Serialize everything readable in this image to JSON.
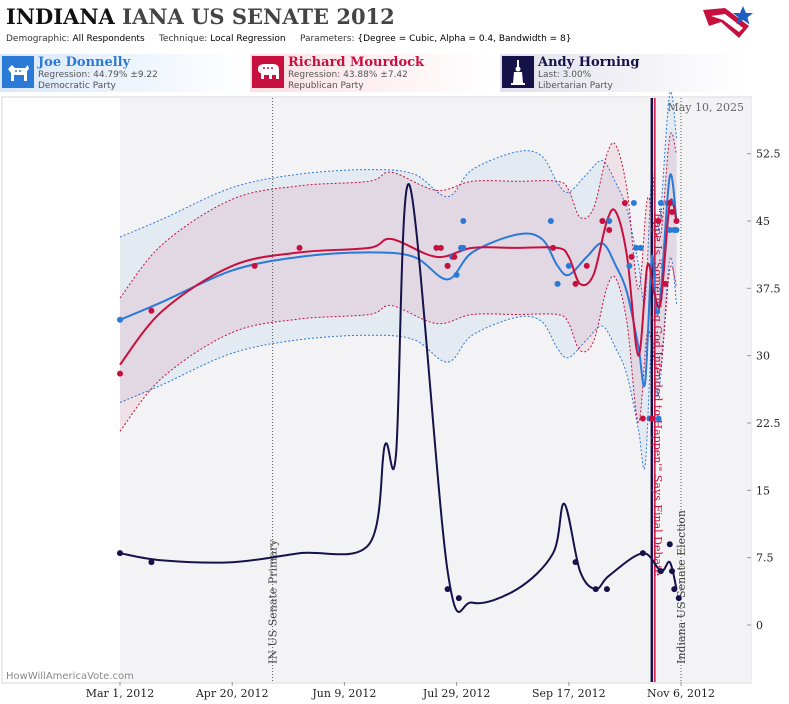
{
  "header": {
    "title_state": "INDIANA",
    "title_rest": "IANA US SENATE",
    "title_year": "2012",
    "demographic_label": "Demographic:",
    "demographic_value": "All Respondents",
    "technique_label": "Technique:",
    "technique_value": "Local Regression",
    "parameters_label": "Parameters:",
    "parameters_value": "{Degree = Cubic, Alpha = 0.4, Bandwidth = 8}"
  },
  "candidates": [
    {
      "name": "Joe Donnelly",
      "stat": "Regression: 44.79% ±9.22",
      "party": "Democratic Party",
      "color": "#2a7ad6",
      "icon": "donkey-icon"
    },
    {
      "name": "Richard Mourdock",
      "stat": "Regression: 43.88% ±7.42",
      "party": "Republican Party",
      "color": "#c8103e",
      "icon": "elephant-icon"
    },
    {
      "name": "Andy Horning",
      "stat": "Last: 3.00%",
      "party": "Libertarian Party",
      "color": "#15124a",
      "icon": "liberty-icon"
    }
  ],
  "chart_data": {
    "type": "line",
    "date_label": "May 10, 2025",
    "watermark": "HowWillAmericaVote.com",
    "xlim": [
      "2012-02-01",
      "2012-11-15"
    ],
    "ylim": [
      -7,
      60
    ],
    "x_ticks": [
      {
        "label": "Mar 1, 2012",
        "date": "2012-03-01"
      },
      {
        "label": "Apr 20, 2012",
        "date": "2012-04-20"
      },
      {
        "label": "Jun 9, 2012",
        "date": "2012-06-09"
      },
      {
        "label": "Jul 29, 2012",
        "date": "2012-07-29"
      },
      {
        "label": "Sep 17, 2012",
        "date": "2012-09-17"
      },
      {
        "label": "Nov 6, 2012",
        "date": "2012-11-06"
      }
    ],
    "y_ticks": [
      {
        "label": "52.5",
        "value": 52.5
      },
      {
        "label": "45",
        "value": 45
      },
      {
        "label": "37.5",
        "value": 37.5
      },
      {
        "label": "30",
        "value": 30
      },
      {
        "label": "22.5",
        "value": 22.5
      },
      {
        "label": "15",
        "value": 15
      },
      {
        "label": "7.5",
        "value": 7.5
      },
      {
        "label": "0",
        "value": 0
      }
    ],
    "shaded_start": "2012-03-01",
    "events": [
      {
        "date": "2012-05-08",
        "label": "IN US Senate Primary",
        "color": "#555555",
        "style": "dotted"
      },
      {
        "date": "2012-11-06",
        "label": "Indiana US Senate Election",
        "color": "#555555",
        "style": "dotted"
      }
    ],
    "annotations": [
      {
        "date": "2012-10-24",
        "label": "\"Rape Is 'Something God Intended to Happen'\" Says Final Debate",
        "color": "#c8103e"
      }
    ],
    "series": [
      {
        "name": "Joe Donnelly",
        "color": "#2a7ad6",
        "points": [
          [
            "2012-03-01",
            34
          ],
          [
            "2012-08-01",
            45
          ],
          [
            "2012-07-25",
            40
          ],
          [
            "2012-07-27",
            41
          ],
          [
            "2012-07-29",
            39
          ],
          [
            "2012-07-31",
            42
          ],
          [
            "2012-08-01",
            42
          ],
          [
            "2012-09-09",
            45
          ],
          [
            "2012-09-12",
            38
          ],
          [
            "2012-09-17",
            40
          ],
          [
            "2012-10-02",
            45
          ],
          [
            "2012-10-05",
            45
          ],
          [
            "2012-10-14",
            40
          ],
          [
            "2012-10-16",
            47
          ],
          [
            "2012-10-17",
            42
          ],
          [
            "2012-10-19",
            42
          ],
          [
            "2012-10-23",
            23
          ],
          [
            "2012-10-27",
            23
          ],
          [
            "2012-10-28",
            47
          ],
          [
            "2012-10-31",
            47
          ],
          [
            "2012-11-01",
            44
          ],
          [
            "2012-11-02",
            47
          ],
          [
            "2012-11-03",
            44
          ],
          [
            "2012-11-04",
            44
          ]
        ],
        "trend": [
          [
            "2012-03-01",
            34
          ],
          [
            "2012-03-20",
            36
          ],
          [
            "2012-04-20",
            39.5
          ],
          [
            "2012-05-20",
            41
          ],
          [
            "2012-06-20",
            41.5
          ],
          [
            "2012-07-10",
            41
          ],
          [
            "2012-07-25",
            38.5
          ],
          [
            "2012-08-05",
            41.5
          ],
          [
            "2012-08-25",
            43.5
          ],
          [
            "2012-09-05",
            43
          ],
          [
            "2012-09-12",
            40
          ],
          [
            "2012-09-17",
            39
          ],
          [
            "2012-09-25",
            41
          ],
          [
            "2012-10-02",
            42.5
          ],
          [
            "2012-10-08",
            40
          ],
          [
            "2012-10-13",
            37
          ],
          [
            "2012-10-18",
            31
          ],
          [
            "2012-10-21",
            27
          ],
          [
            "2012-10-24",
            41
          ],
          [
            "2012-10-26",
            35
          ],
          [
            "2012-10-28",
            37
          ],
          [
            "2012-11-01",
            50
          ],
          [
            "2012-11-04",
            45
          ]
        ]
      },
      {
        "name": "Richard Mourdock",
        "color": "#c8103e",
        "points": [
          [
            "2012-03-01",
            28
          ],
          [
            "2012-03-15",
            35
          ],
          [
            "2012-04-30",
            40
          ],
          [
            "2012-05-20",
            42
          ],
          [
            "2012-07-20",
            42
          ],
          [
            "2012-07-22",
            42
          ],
          [
            "2012-07-25",
            40
          ],
          [
            "2012-07-28",
            41
          ],
          [
            "2012-09-10",
            42
          ],
          [
            "2012-09-20",
            38
          ],
          [
            "2012-09-25",
            40
          ],
          [
            "2012-10-02",
            45
          ],
          [
            "2012-10-05",
            44
          ],
          [
            "2012-10-12",
            47
          ],
          [
            "2012-10-15",
            41
          ],
          [
            "2012-10-20",
            23
          ],
          [
            "2012-10-24",
            23
          ],
          [
            "2012-10-27",
            45
          ],
          [
            "2012-10-30",
            38
          ],
          [
            "2012-11-01",
            47
          ],
          [
            "2012-11-02",
            46
          ],
          [
            "2012-11-04",
            45
          ]
        ],
        "trend": [
          [
            "2012-03-01",
            29
          ],
          [
            "2012-03-20",
            35
          ],
          [
            "2012-04-20",
            40
          ],
          [
            "2012-05-20",
            41.5
          ],
          [
            "2012-06-20",
            42
          ],
          [
            "2012-06-30",
            43
          ],
          [
            "2012-07-20",
            41
          ],
          [
            "2012-08-05",
            42
          ],
          [
            "2012-08-25",
            42
          ],
          [
            "2012-09-12",
            42
          ],
          [
            "2012-09-17",
            41
          ],
          [
            "2012-09-22",
            38
          ],
          [
            "2012-09-28",
            39
          ],
          [
            "2012-10-04",
            45
          ],
          [
            "2012-10-08",
            46
          ],
          [
            "2012-10-13",
            41
          ],
          [
            "2012-10-18",
            30
          ],
          [
            "2012-10-22",
            40
          ],
          [
            "2012-10-25",
            37
          ],
          [
            "2012-10-28",
            36
          ],
          [
            "2012-11-01",
            47
          ],
          [
            "2012-11-04",
            45
          ]
        ]
      },
      {
        "name": "Andy Horning",
        "color": "#15124a",
        "points": [
          [
            "2012-03-01",
            8
          ],
          [
            "2012-03-15",
            7
          ],
          [
            "2012-07-25",
            4
          ],
          [
            "2012-07-30",
            3
          ],
          [
            "2012-09-20",
            7
          ],
          [
            "2012-09-29",
            4
          ],
          [
            "2012-10-04",
            4
          ],
          [
            "2012-10-20",
            8
          ],
          [
            "2012-10-28",
            6
          ],
          [
            "2012-11-01",
            9
          ],
          [
            "2012-11-02",
            6
          ],
          [
            "2012-11-03",
            4
          ],
          [
            "2012-11-05",
            3
          ]
        ],
        "trend": [
          [
            "2012-03-01",
            8
          ],
          [
            "2012-03-20",
            7.2
          ],
          [
            "2012-04-20",
            7
          ],
          [
            "2012-05-20",
            8
          ],
          [
            "2012-06-20",
            9
          ],
          [
            "2012-06-27",
            20
          ],
          [
            "2012-07-02",
            19
          ],
          [
            "2012-07-08",
            49
          ],
          [
            "2012-07-25",
            6
          ],
          [
            "2012-08-05",
            2.5
          ],
          [
            "2012-08-25",
            4
          ],
          [
            "2012-09-10",
            8
          ],
          [
            "2012-09-15",
            13.5
          ],
          [
            "2012-09-22",
            6
          ],
          [
            "2012-09-29",
            4
          ],
          [
            "2012-10-05",
            5.5
          ],
          [
            "2012-10-20",
            8
          ],
          [
            "2012-10-28",
            6
          ],
          [
            "2012-11-01",
            7
          ],
          [
            "2012-11-04",
            4
          ]
        ]
      }
    ]
  }
}
